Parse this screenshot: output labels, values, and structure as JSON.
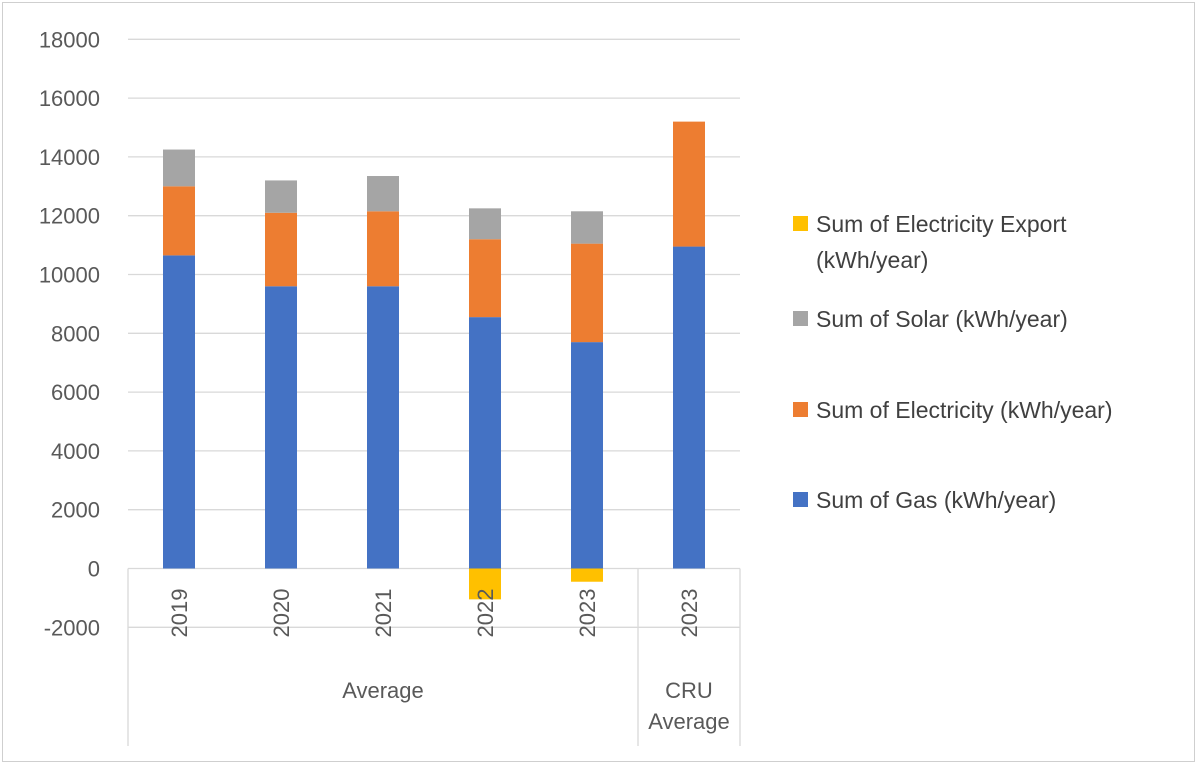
{
  "chart_data": {
    "type": "bar",
    "stacked": true,
    "categories": [
      "2019",
      "2020",
      "2021",
      "2022",
      "2023",
      "2023"
    ],
    "groups": [
      {
        "label": "Average",
        "categories": [
          "2019",
          "2020",
          "2021",
          "2022",
          "2023"
        ]
      },
      {
        "label_lines": [
          "CRU",
          "Average"
        ],
        "categories": [
          "2023"
        ]
      }
    ],
    "series": [
      {
        "name": "Sum of Gas (kWh/year)",
        "color": "#4472c4",
        "values": [
          10650,
          9600,
          9600,
          8550,
          7700,
          10950
        ]
      },
      {
        "name": "Sum of Electricity (kWh/year)",
        "color": "#ed7d31",
        "values": [
          2350,
          2500,
          2550,
          2650,
          3350,
          4250
        ]
      },
      {
        "name": "Sum of Solar (kWh/year)",
        "color": "#a5a5a5",
        "values": [
          1250,
          1100,
          1200,
          1050,
          1100,
          0
        ]
      },
      {
        "name_lines": [
          "Sum of Electricity Export",
          "(kWh/year)"
        ],
        "color": "#ffc000",
        "values": [
          0,
          0,
          0,
          -1050,
          -450,
          0
        ]
      }
    ],
    "legend_order": [
      3,
      2,
      1,
      0
    ],
    "legend_position": "right",
    "ylim": [
      -2000,
      18000
    ],
    "yticks": [
      -2000,
      0,
      2000,
      4000,
      6000,
      8000,
      10000,
      12000,
      14000,
      16000,
      18000
    ],
    "grid": true
  }
}
